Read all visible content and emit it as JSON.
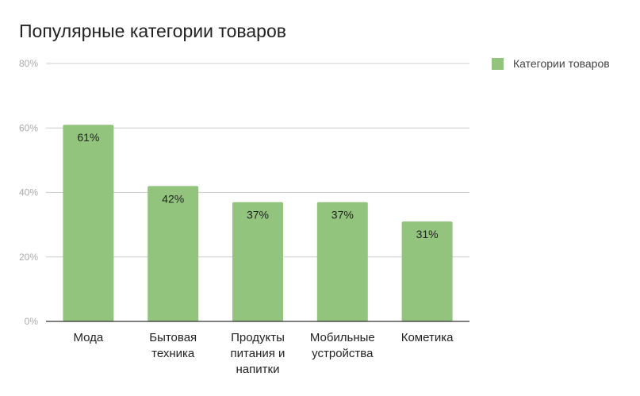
{
  "chart_data": {
    "type": "bar",
    "title": "Популярные категории товаров",
    "categories": [
      [
        "Мода"
      ],
      [
        "Бытовая",
        "техника"
      ],
      [
        "Продукты",
        "питания и",
        "напитки"
      ],
      [
        "Мобильные",
        "устройства"
      ],
      [
        "Кометика"
      ]
    ],
    "series": [
      {
        "name": "Категории товаров",
        "values": [
          61,
          42,
          37,
          37,
          31
        ],
        "color": "#93c47d"
      }
    ],
    "data_labels": [
      "61%",
      "42%",
      "37%",
      "37%",
      "31%"
    ],
    "y_ticks": [
      {
        "value": 0,
        "label": "0%"
      },
      {
        "value": 20,
        "label": "20%"
      },
      {
        "value": 40,
        "label": "40%"
      },
      {
        "value": 60,
        "label": "60%"
      },
      {
        "value": 80,
        "label": "80%"
      }
    ],
    "ylim": [
      0,
      80
    ],
    "grid": true,
    "legend_position": "top-right"
  }
}
